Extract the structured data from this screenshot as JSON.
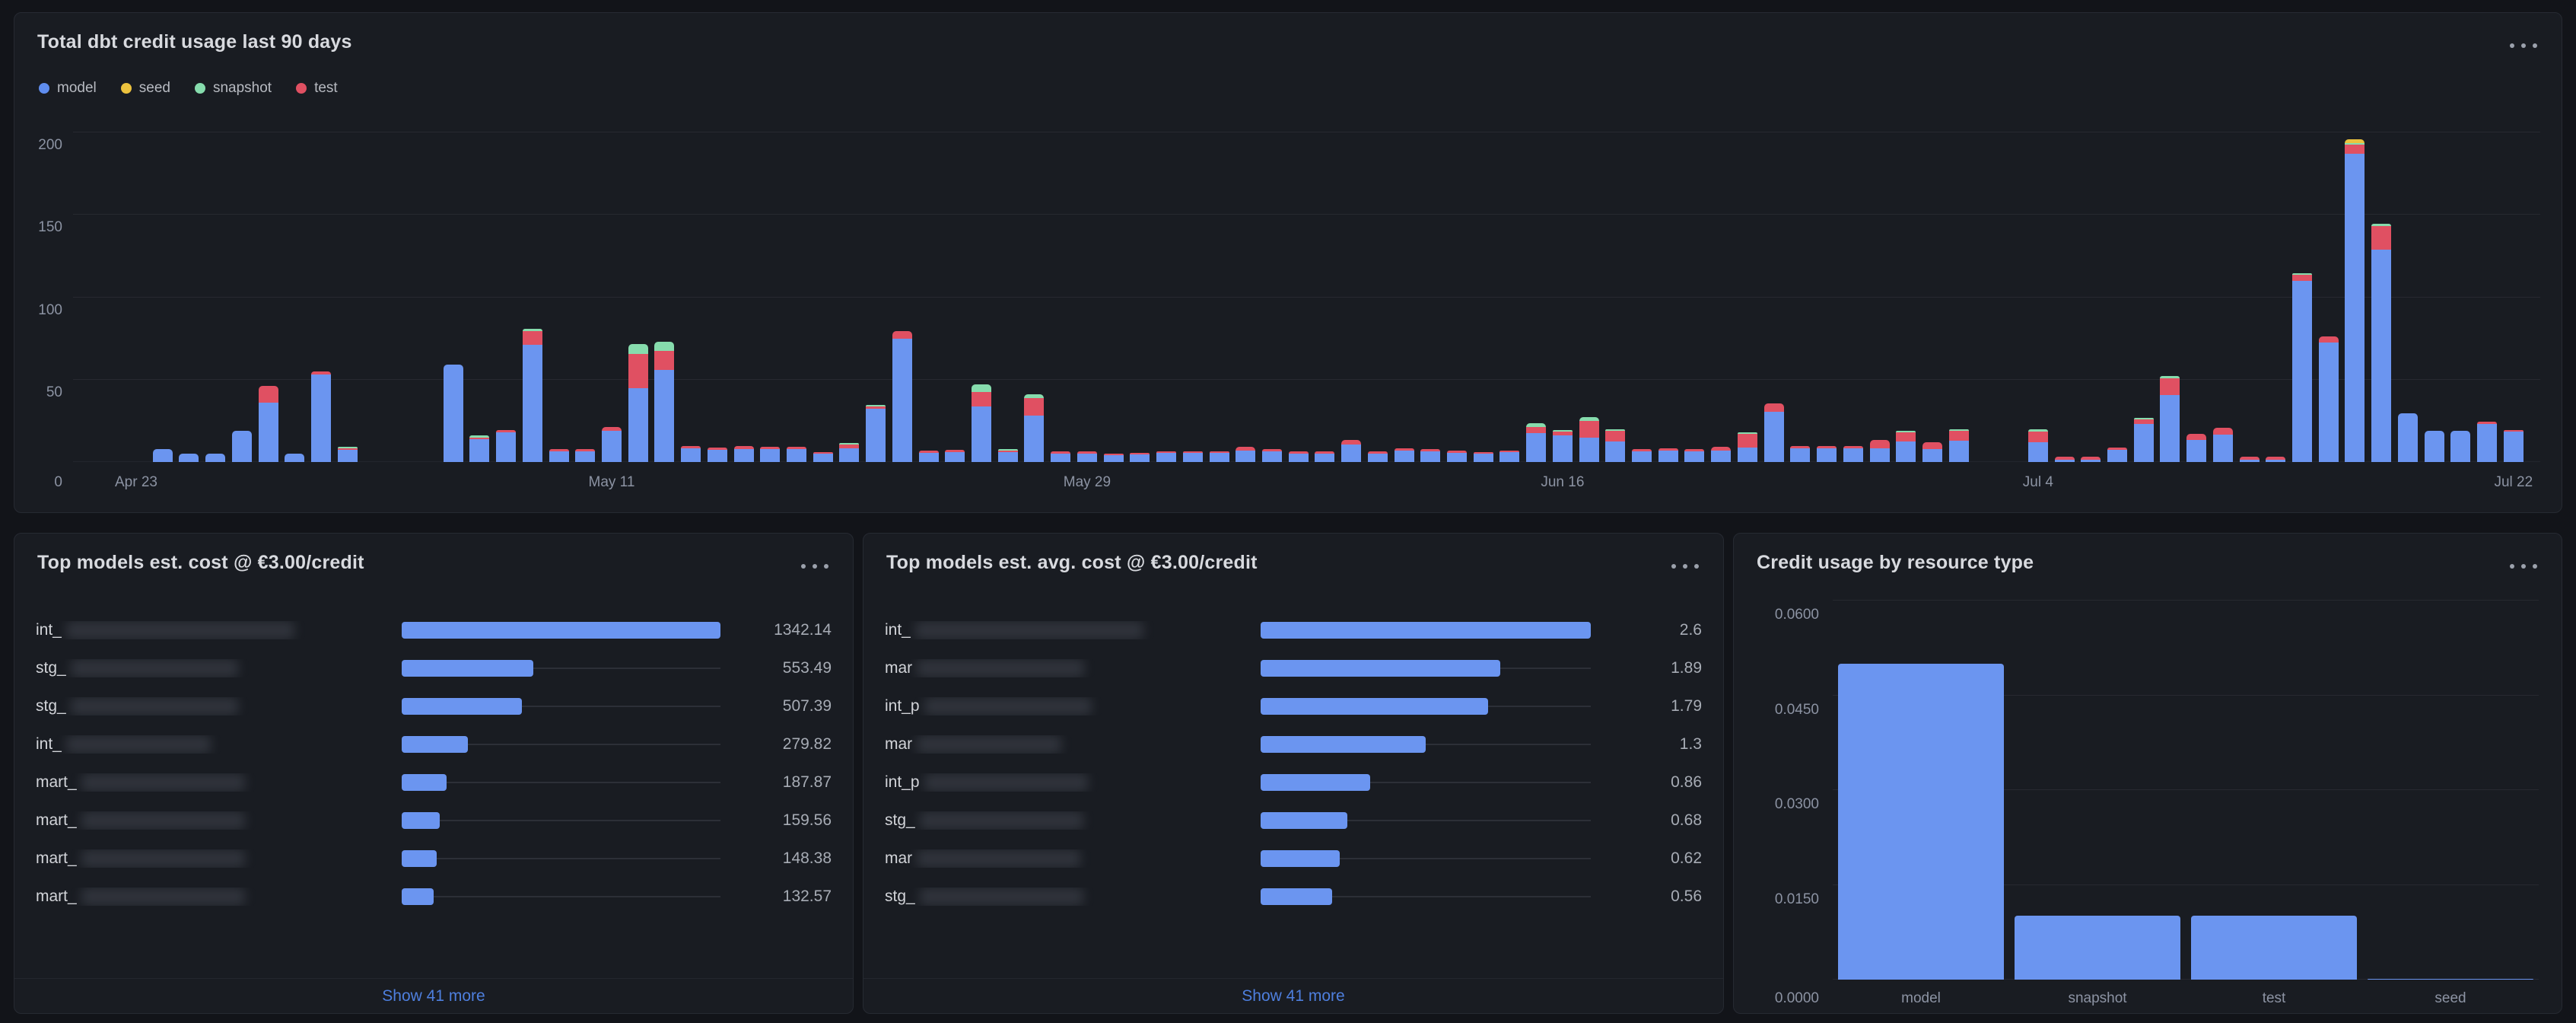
{
  "colors": {
    "model": "#6B95F0",
    "seed": "#ECC23E",
    "snapshot": "#86DCAD",
    "test": "#E05062",
    "link": "#4E7FDE"
  },
  "top_panel": {
    "title": "Total dbt credit usage last 90 days",
    "legend": [
      {
        "label": "model",
        "color": "#5F8DEF"
      },
      {
        "label": "seed",
        "color": "#ECC23E"
      },
      {
        "label": "snapshot",
        "color": "#86DCAD"
      },
      {
        "label": "test",
        "color": "#E05062"
      }
    ]
  },
  "cost_panel": {
    "title": "Top models est. cost @ €3.00/credit",
    "rows": [
      {
        "label_prefix": "int_",
        "value": "1342.14"
      },
      {
        "label_prefix": "stg_",
        "value": "553.49"
      },
      {
        "label_prefix": "stg_",
        "value": "507.39"
      },
      {
        "label_prefix": "int_",
        "value": "279.82"
      },
      {
        "label_prefix": "mart_",
        "value": "187.87"
      },
      {
        "label_prefix": "mart_",
        "value": "159.56"
      },
      {
        "label_prefix": "mart_",
        "value": "148.38"
      },
      {
        "label_prefix": "mart_",
        "value": "132.57"
      }
    ],
    "show_more": "Show 41 more"
  },
  "avg_panel": {
    "title": "Top models est. avg. cost @ €3.00/credit",
    "rows": [
      {
        "label_prefix": "int_",
        "value": "2.6"
      },
      {
        "label_prefix": "mar",
        "value": "1.89"
      },
      {
        "label_prefix": "int_p",
        "value": "1.79"
      },
      {
        "label_prefix": "mar",
        "value": "1.3"
      },
      {
        "label_prefix": "int_p",
        "value": "0.86"
      },
      {
        "label_prefix": "stg_",
        "value": "0.68"
      },
      {
        "label_prefix": "mar",
        "value": "0.62"
      },
      {
        "label_prefix": "stg_",
        "value": "0.56"
      }
    ],
    "show_more": "Show 41 more"
  },
  "res_panel": {
    "title": "Credit usage by resource type"
  },
  "chart_data": [
    {
      "type": "bar",
      "stacked": true,
      "title": "Total dbt credit usage last 90 days",
      "x_start_label": "Apr 23",
      "x_end_label": "Jul 22",
      "ylim": [
        0,
        207
      ],
      "y_ticks": [
        200,
        150,
        100,
        50
      ],
      "y_zero_label": "0",
      "x_ticks": [
        {
          "day": 0,
          "label": "Apr 23"
        },
        {
          "day": 18,
          "label": "May 11"
        },
        {
          "day": 36,
          "label": "May 29"
        },
        {
          "day": 54,
          "label": "Jun 16"
        },
        {
          "day": 72,
          "label": "Jul 4"
        },
        {
          "day": 90,
          "label": "Jul 22"
        }
      ],
      "series_order": [
        "model",
        "test",
        "snapshot",
        "seed"
      ],
      "bar_columns": [
        "day",
        "model",
        "test",
        "snapshot",
        "seed"
      ],
      "bars": [
        [
          1,
          8,
          0,
          0,
          0
        ],
        [
          2,
          5,
          0,
          0,
          0
        ],
        [
          3,
          5,
          0,
          0,
          0
        ],
        [
          4,
          19,
          0,
          0,
          0
        ],
        [
          5,
          36,
          10,
          0,
          0
        ],
        [
          6,
          5,
          0,
          0,
          0
        ],
        [
          7,
          53,
          2,
          0,
          0
        ],
        [
          8,
          7.5,
          1,
          1,
          0
        ],
        [
          12,
          59,
          0,
          0,
          0
        ],
        [
          13,
          14,
          0.5,
          1.5,
          0
        ],
        [
          14,
          18,
          1.5,
          0,
          0
        ],
        [
          15,
          71,
          8.5,
          1.5,
          0
        ],
        [
          16,
          6.5,
          1.5,
          0,
          0
        ],
        [
          17,
          6.5,
          1.5,
          0,
          0
        ],
        [
          18,
          19,
          2.5,
          0,
          0
        ],
        [
          19,
          45,
          21,
          6,
          0
        ],
        [
          20,
          56,
          11.5,
          5.5,
          0
        ],
        [
          21,
          8.5,
          1.5,
          0,
          0
        ],
        [
          22,
          7.5,
          1.5,
          0,
          0
        ],
        [
          23,
          8,
          2,
          0,
          0
        ],
        [
          24,
          8,
          1.5,
          0,
          0
        ],
        [
          25,
          8,
          1.5,
          0,
          0
        ],
        [
          26,
          5,
          1,
          0,
          0
        ],
        [
          27,
          8.5,
          2.5,
          1,
          0
        ],
        [
          28,
          32.5,
          1.5,
          1,
          0
        ],
        [
          29,
          75,
          4.5,
          0,
          0
        ],
        [
          30,
          5.5,
          1.5,
          0,
          0
        ],
        [
          31,
          6,
          1.5,
          0,
          0
        ],
        [
          32,
          33.5,
          9,
          4.5,
          0
        ],
        [
          33,
          6,
          1,
          1,
          0
        ],
        [
          34,
          28,
          10.5,
          2.5,
          0
        ],
        [
          35,
          5,
          1.5,
          0,
          0
        ],
        [
          36,
          5,
          1.5,
          0,
          0
        ],
        [
          37,
          4,
          1,
          0,
          0
        ],
        [
          38,
          4.5,
          1,
          0,
          0
        ],
        [
          39,
          5.5,
          1,
          0,
          0
        ],
        [
          40,
          5.5,
          1,
          0,
          0
        ],
        [
          41,
          5.5,
          1,
          0,
          0
        ],
        [
          42,
          7,
          2.5,
          0,
          0
        ],
        [
          43,
          6.5,
          1.5,
          0,
          0
        ],
        [
          44,
          5,
          1.5,
          0,
          0
        ],
        [
          45,
          5,
          1.5,
          0,
          0
        ],
        [
          46,
          10.5,
          3,
          0,
          0
        ],
        [
          47,
          5,
          1.5,
          0,
          0
        ],
        [
          48,
          7,
          1.5,
          0,
          0
        ],
        [
          49,
          6.5,
          1.5,
          0,
          0
        ],
        [
          50,
          5.5,
          1.5,
          0,
          0
        ],
        [
          51,
          5,
          1,
          0,
          0
        ],
        [
          52,
          6,
          1,
          0,
          0
        ],
        [
          53,
          17.5,
          3.5,
          2.5,
          0
        ],
        [
          54,
          16,
          2.5,
          1,
          0
        ],
        [
          55,
          15,
          10,
          2.5,
          0
        ],
        [
          56,
          12.5,
          6.5,
          1,
          0
        ],
        [
          57,
          6.5,
          1.5,
          0,
          0
        ],
        [
          58,
          7,
          1.5,
          0,
          0
        ],
        [
          59,
          6.5,
          1.5,
          0,
          0
        ],
        [
          60,
          7,
          2.5,
          0,
          0
        ],
        [
          61,
          9,
          8.5,
          0.5,
          0
        ],
        [
          62,
          30.5,
          5,
          0,
          0
        ],
        [
          63,
          8.5,
          1.5,
          0,
          0
        ],
        [
          64,
          8.5,
          1.5,
          0,
          0
        ],
        [
          65,
          8.5,
          1.5,
          0,
          0
        ],
        [
          66,
          8.5,
          5,
          0,
          0
        ],
        [
          67,
          12.5,
          5.5,
          1,
          0
        ],
        [
          68,
          8,
          4,
          0,
          0
        ],
        [
          69,
          13,
          6,
          1,
          0
        ],
        [
          72,
          12,
          6.5,
          1.5,
          0
        ],
        [
          73,
          1.5,
          2,
          0,
          0
        ],
        [
          74,
          1.5,
          2,
          0,
          0
        ],
        [
          75,
          7.5,
          1.5,
          0,
          0
        ],
        [
          76,
          23,
          3,
          1,
          0
        ],
        [
          77,
          40.5,
          10,
          1.5,
          0
        ],
        [
          78,
          13.5,
          3.5,
          0,
          0
        ],
        [
          79,
          16.5,
          4,
          0,
          0
        ],
        [
          80,
          1.5,
          2,
          0,
          0
        ],
        [
          81,
          1.5,
          2,
          0,
          0
        ],
        [
          82,
          110,
          3.5,
          1,
          0
        ],
        [
          83,
          72.5,
          3.5,
          0,
          0
        ],
        [
          84,
          187,
          5.5,
          0.5,
          2.5
        ],
        [
          85,
          129,
          14.5,
          1.5,
          0
        ],
        [
          86,
          29.5,
          0,
          0,
          0
        ],
        [
          87,
          19,
          0,
          0,
          0
        ],
        [
          88,
          19,
          0,
          0,
          0
        ],
        [
          89,
          23,
          1.5,
          0,
          0
        ],
        [
          90,
          18.5,
          1,
          0,
          0
        ]
      ]
    },
    {
      "type": "bar-gauge",
      "title": "Top models est. cost @ €3.00/credit",
      "max": 1342.14,
      "categories": [
        "int_",
        "stg_",
        "stg_",
        "int_",
        "mart_",
        "mart_",
        "mart_",
        "mart_"
      ],
      "values": [
        1342.14,
        553.49,
        507.39,
        279.82,
        187.87,
        159.56,
        148.38,
        132.57
      ]
    },
    {
      "type": "bar-gauge",
      "title": "Top models est. avg. cost @ €3.00/credit",
      "max": 2.6,
      "categories": [
        "int_",
        "mar",
        "int_p",
        "mar",
        "int_p",
        "stg_",
        "mar",
        "stg_"
      ],
      "values": [
        2.6,
        1.89,
        1.79,
        1.3,
        0.86,
        0.68,
        0.62,
        0.56
      ]
    },
    {
      "type": "bar",
      "title": "Credit usage by resource type",
      "categories": [
        "model",
        "snapshot",
        "test",
        "seed"
      ],
      "values": [
        0.05,
        0.0101,
        0.0101,
        0.0001
      ],
      "ylim": [
        0,
        0.06
      ],
      "y_ticks": [
        0.06,
        0.045,
        0.03,
        0.015
      ],
      "y_tick_labels": [
        "0.0600",
        "0.0450",
        "0.0300",
        "0.0150"
      ],
      "y_zero_label": "0.0000"
    }
  ]
}
